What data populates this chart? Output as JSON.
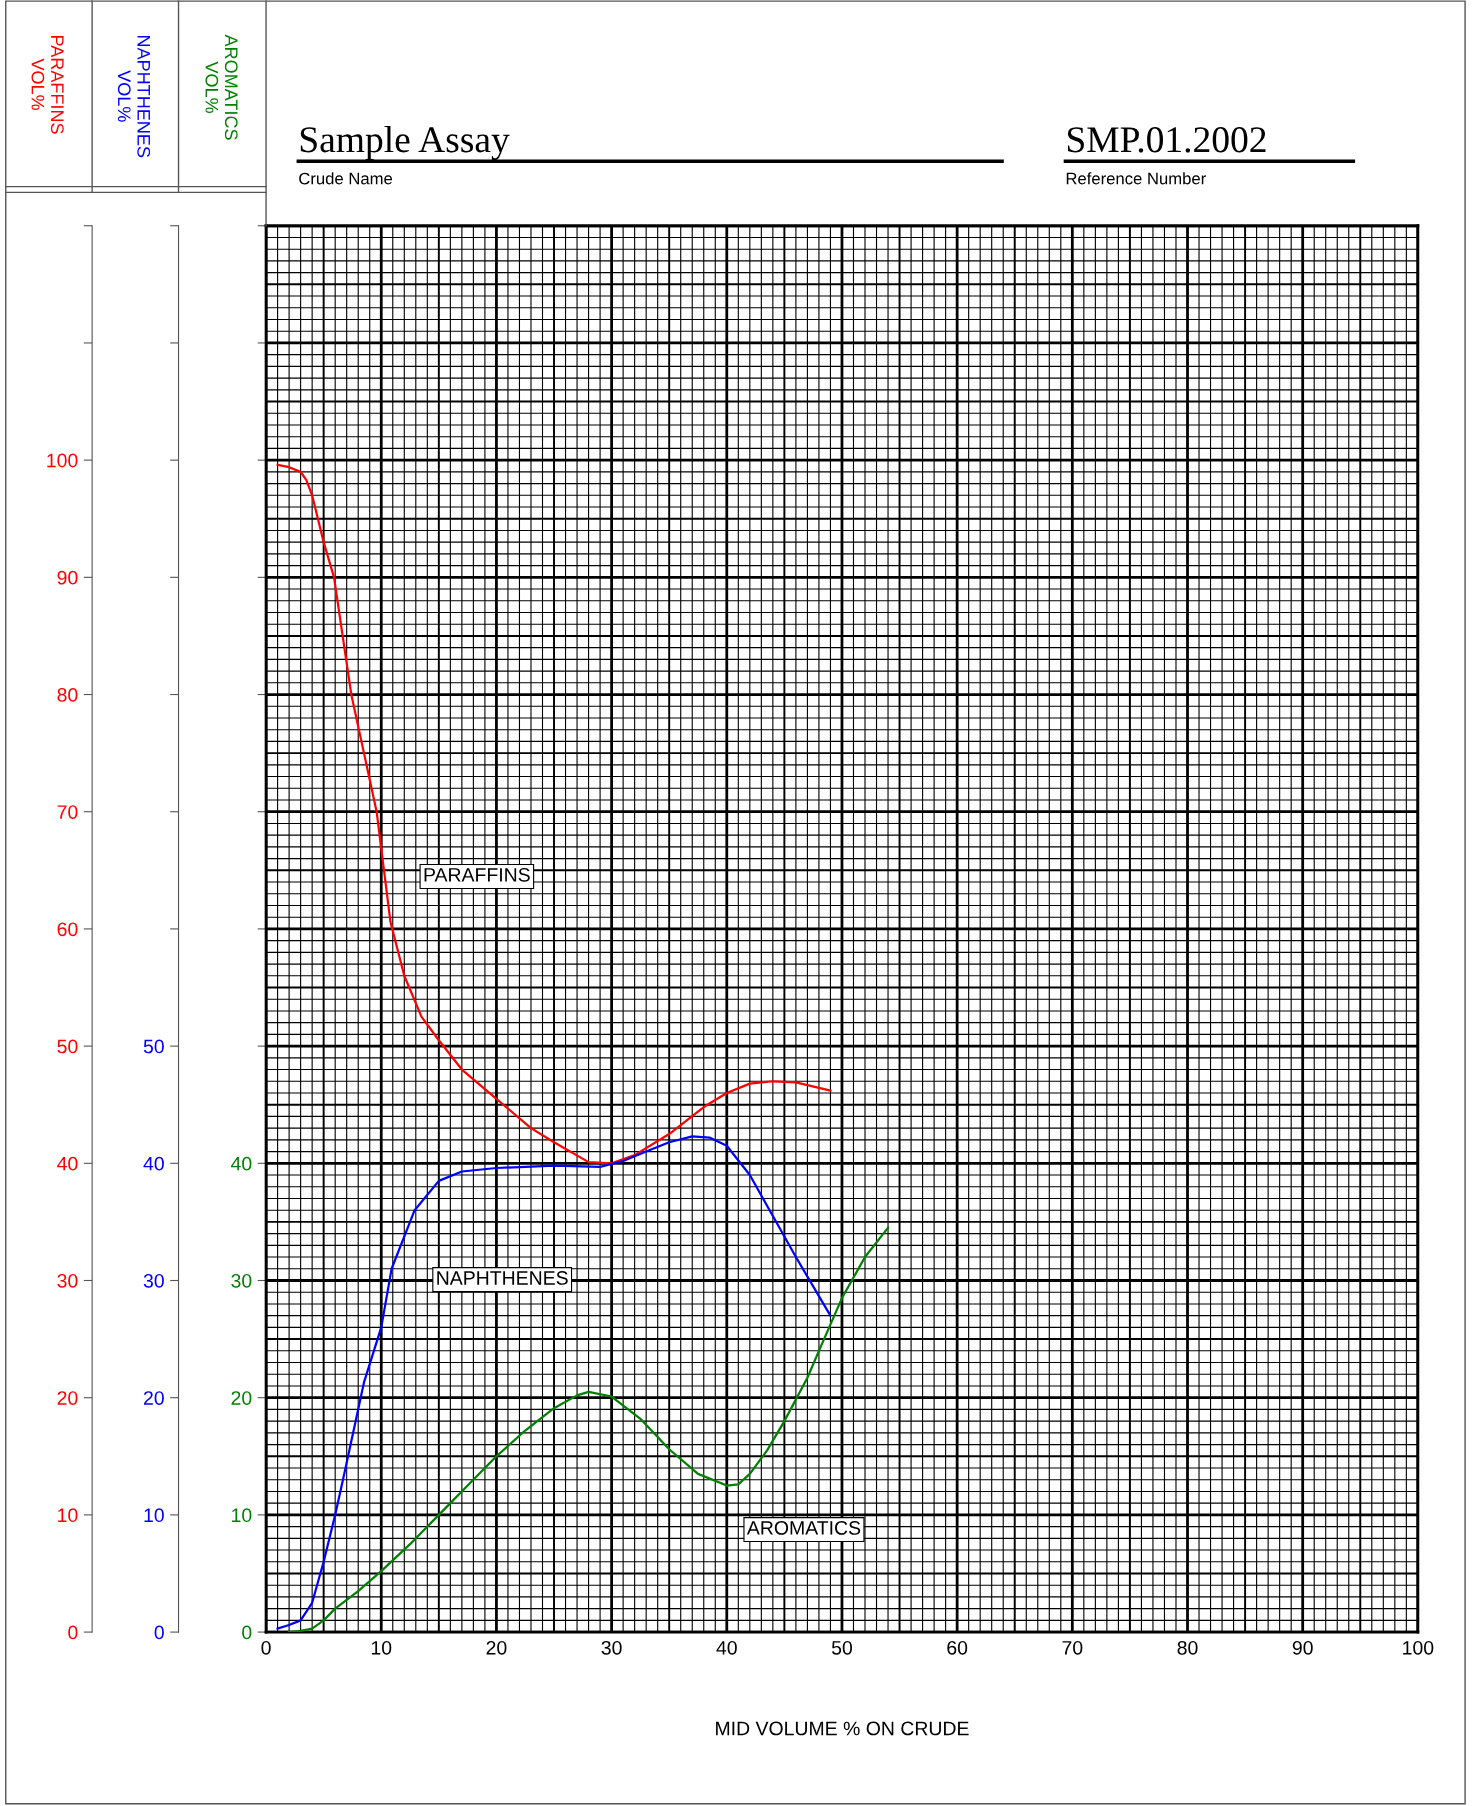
{
  "chart_data": {
    "type": "line",
    "title": "Sample Assay",
    "annotations": [
      "Crude Name",
      "SMP.01.2002",
      "Reference Number",
      "PARAFFINS",
      "NAPHTHENES",
      "AROMATICS",
      "PARAFFINS\nVOL%",
      "NAPHTHENES\nVOL%",
      "AROMATICS\nVOL%"
    ],
    "xlabel": "MID VOLUME % ON CRUDE",
    "xlim": [
      0,
      100
    ],
    "xticks": [
      0,
      10,
      20,
      30,
      40,
      50,
      60,
      70,
      80,
      90,
      100
    ],
    "ylim": [
      0,
      120
    ],
    "yticks": [
      0,
      10,
      20,
      30,
      40,
      50,
      60,
      70,
      80,
      90,
      100,
      {
        "value": 110,
        "label": null
      },
      {
        "value": 120,
        "label": null
      }
    ],
    "y2lim": [
      0,
      120
    ],
    "y2ticks": [
      0,
      10,
      20,
      30,
      40,
      50,
      {
        "value": 60,
        "label": null
      },
      {
        "value": 70,
        "label": null
      },
      {
        "value": 80,
        "label": null
      },
      {
        "value": 90,
        "label": null
      },
      {
        "value": 100,
        "label": null
      },
      {
        "value": 110,
        "label": null
      },
      {
        "value": 120,
        "label": null
      }
    ],
    "y3lim": [
      0,
      120
    ],
    "y3ticks": [
      0,
      10,
      20,
      30,
      40,
      {
        "value": 50,
        "label": null
      },
      {
        "value": 60,
        "label": null
      },
      {
        "value": 70,
        "label": null
      },
      {
        "value": 80,
        "label": null
      },
      {
        "value": 90,
        "label": null
      },
      {
        "value": 100,
        "label": null
      },
      {
        "value": 110,
        "label": null
      },
      {
        "value": 120,
        "label": null
      }
    ],
    "grid": true,
    "line_style": "solid",
    "series": [
      {
        "color": "#ff0000",
        "axis": "y",
        "x": [
          1,
          2,
          3,
          3.5,
          4,
          5,
          5.9,
          7.4,
          8.5,
          9.6,
          10.8,
          12,
          13.5,
          15,
          17,
          20,
          23,
          25,
          28,
          30,
          32,
          35,
          38,
          40,
          42,
          44,
          46,
          49
        ],
        "values": [
          99.6,
          99.4,
          99,
          98.3,
          97,
          93,
          90,
          80,
          75,
          70,
          60.6,
          56,
          52.5,
          50.5,
          48,
          45.5,
          43,
          41.8,
          40.1,
          40,
          40.7,
          42.5,
          44.8,
          46,
          46.8,
          47,
          46.9,
          46.2
        ]
      },
      {
        "color": "#0000ff",
        "axis": "y2",
        "x": [
          1,
          2,
          3,
          4,
          5,
          6,
          6.9,
          8.5,
          10,
          10.9,
          12.9,
          15,
          17,
          20,
          25,
          29,
          31,
          33,
          35,
          37,
          38.5,
          40,
          42,
          44,
          46,
          49
        ],
        "values": [
          0.3,
          0.6,
          1,
          2.5,
          6,
          10,
          14,
          21.3,
          26,
          31,
          36,
          38.5,
          39.3,
          39.6,
          39.8,
          39.7,
          40.2,
          41,
          41.8,
          42.3,
          42.2,
          41.5,
          39,
          35.5,
          32,
          27
        ]
      },
      {
        "color": "#008000",
        "axis": "y3",
        "x": [
          2,
          3,
          4,
          5,
          6,
          8,
          10,
          12.5,
          15,
          17.5,
          20,
          22.5,
          25,
          27,
          28,
          30,
          32.5,
          35,
          37.5,
          40,
          41,
          42,
          43.5,
          45,
          47,
          48,
          50,
          52,
          54
        ],
        "values": [
          0,
          0.1,
          0.3,
          1,
          2,
          3.5,
          5.2,
          7.5,
          10,
          12.5,
          15,
          17.2,
          19.1,
          20.2,
          20.5,
          20.1,
          18.2,
          15.6,
          13.5,
          12.5,
          12.6,
          13.5,
          15.5,
          18,
          21.7,
          24,
          28.5,
          32,
          34.5
        ]
      }
    ]
  }
}
